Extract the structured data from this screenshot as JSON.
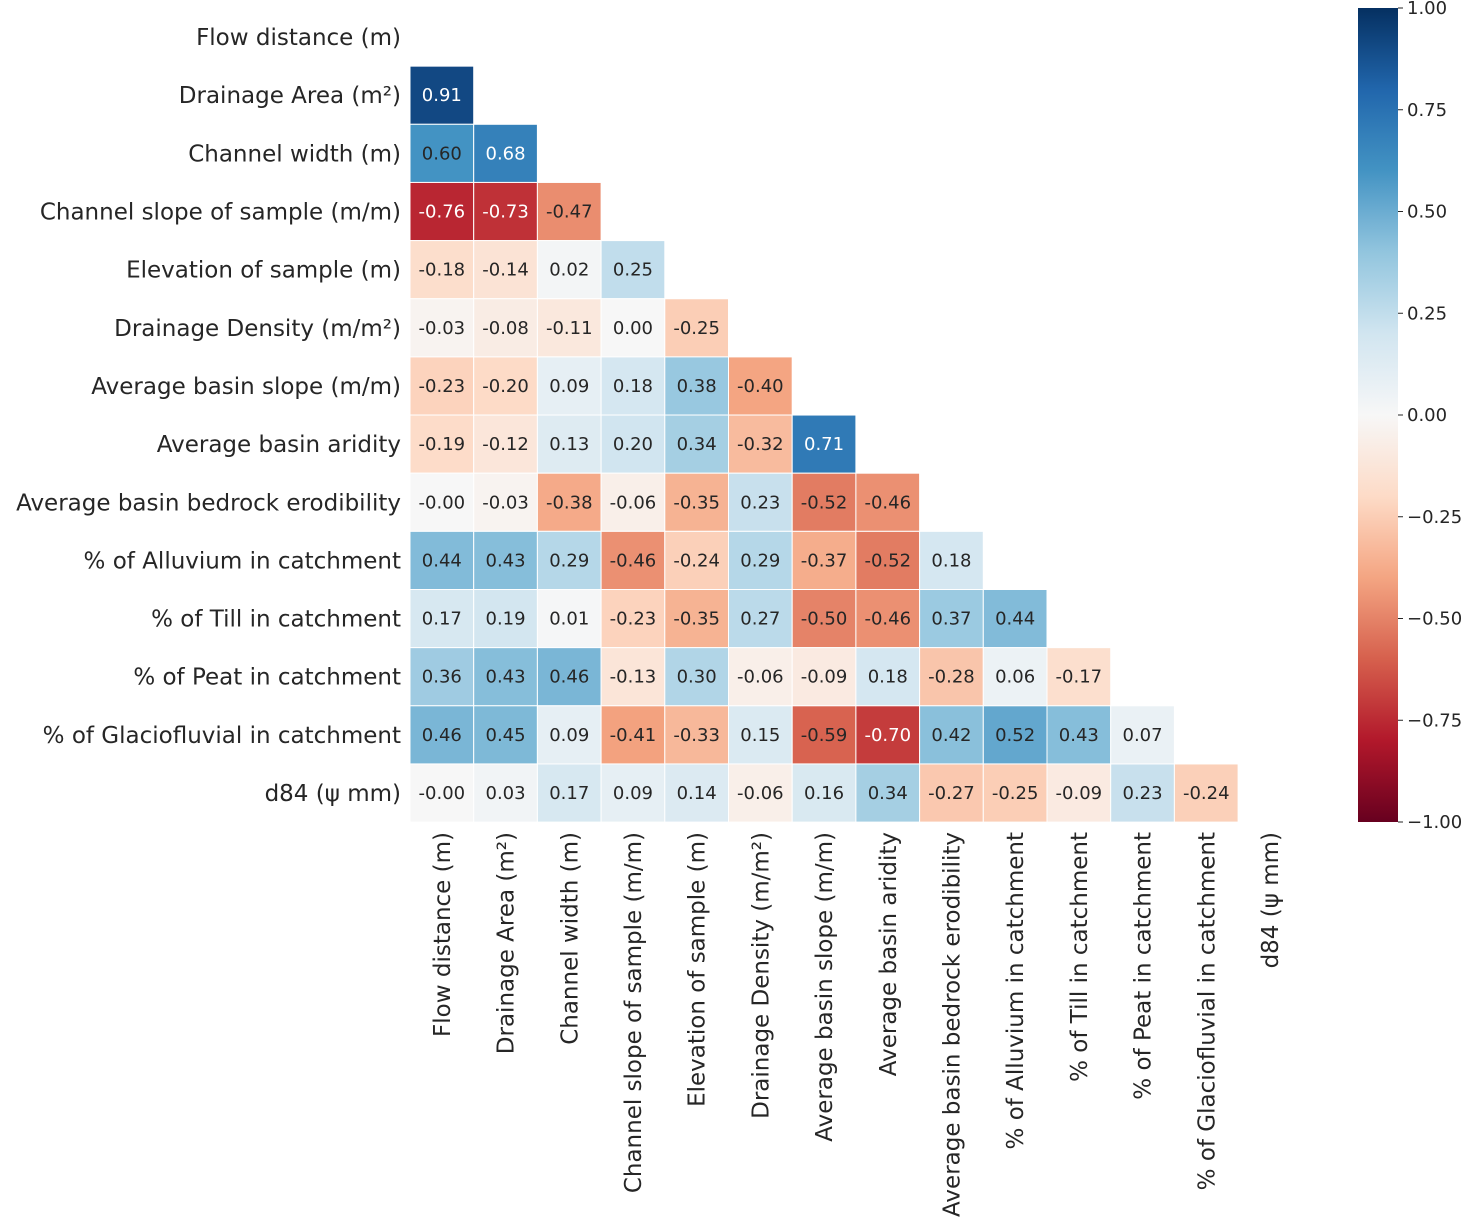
{
  "chart_data": {
    "type": "heatmap",
    "title": "",
    "mask": "upper-triangle-including-diagonal",
    "variables": [
      "Flow distance (m)",
      "Drainage Area (m²)",
      "Channel width (m)",
      "Channel slope of sample (m/m)",
      "Elevation of sample (m)",
      "Drainage Density (m/m²)",
      "Average basin slope (m/m)",
      "Average basin aridity",
      "Average basin bedrock erodibility",
      "% of Alluvium in catchment",
      "% of Till in catchment",
      "% of Peat in catchment",
      "% of Glaciofluvial in catchment",
      "d84 (ψ mm)"
    ],
    "lower_triangle": [
      [],
      [
        0.91
      ],
      [
        0.6,
        0.68
      ],
      [
        -0.76,
        -0.73,
        -0.47
      ],
      [
        -0.18,
        -0.14,
        0.02,
        0.25
      ],
      [
        -0.03,
        -0.08,
        -0.11,
        0.0,
        -0.25
      ],
      [
        -0.23,
        -0.2,
        0.09,
        0.18,
        0.38,
        -0.4
      ],
      [
        -0.19,
        -0.12,
        0.13,
        0.2,
        0.34,
        -0.32,
        0.71
      ],
      [
        -0.0,
        -0.03,
        -0.38,
        -0.06,
        -0.35,
        0.23,
        -0.52,
        -0.46
      ],
      [
        0.44,
        0.43,
        0.29,
        -0.46,
        -0.24,
        0.29,
        -0.37,
        -0.52,
        0.18
      ],
      [
        0.17,
        0.19,
        0.01,
        -0.23,
        -0.35,
        0.27,
        -0.5,
        -0.46,
        0.37,
        0.44
      ],
      [
        0.36,
        0.43,
        0.46,
        -0.13,
        0.3,
        -0.06,
        -0.09,
        0.18,
        -0.28,
        0.06,
        -0.17
      ],
      [
        0.46,
        0.45,
        0.09,
        -0.41,
        -0.33,
        0.15,
        -0.59,
        -0.7,
        0.42,
        0.52,
        0.43,
        0.07
      ],
      [
        -0.0,
        0.03,
        0.17,
        0.09,
        0.14,
        -0.06,
        0.16,
        0.34,
        -0.27,
        -0.25,
        -0.09,
        0.23,
        -0.24
      ]
    ],
    "colormap": "RdBu",
    "vmin": -1.0,
    "vmax": 1.0,
    "colorbar": {
      "ticks": [
        1.0,
        0.75,
        0.5,
        0.25,
        0.0,
        -0.25,
        -0.5,
        -0.75,
        -1.0
      ],
      "tick_labels": [
        "1.00",
        "0.75",
        "0.50",
        "0.25",
        "0.00",
        "−0.25",
        "−0.50",
        "−0.75",
        "−1.00"
      ]
    },
    "annotation_format": "0.00",
    "xlabel": "",
    "ylabel": ""
  }
}
